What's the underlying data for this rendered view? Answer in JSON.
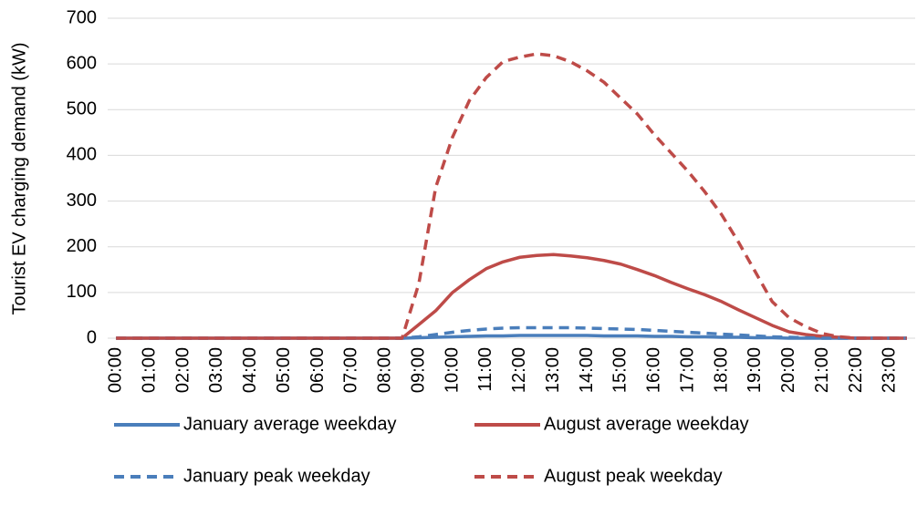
{
  "chart_data": {
    "type": "line",
    "ylabel": "Tourist EV charging demand (kW)",
    "categories": [
      "00:00",
      null,
      "01:00",
      null,
      "02:00",
      null,
      "03:00",
      null,
      "04:00",
      null,
      "05:00",
      null,
      "06:00",
      null,
      "07:00",
      null,
      "08:00",
      null,
      "09:00",
      null,
      "10:00",
      null,
      "11:00",
      null,
      "12:00",
      null,
      "13:00",
      null,
      "14:00",
      null,
      "15:00",
      null,
      "16:00",
      null,
      "17:00",
      null,
      "18:00",
      null,
      "19:00",
      null,
      "20:00",
      null,
      "21:00",
      null,
      "22:00",
      null,
      "23:00",
      null
    ],
    "series": [
      {
        "name": "January average weekday",
        "color": "#4a7ebb",
        "linestyle": "solid",
        "values": [
          0,
          0,
          0,
          0,
          0,
          0,
          0,
          0,
          0,
          0,
          0,
          0,
          0,
          0,
          0,
          0,
          0,
          0,
          1,
          2,
          3,
          4,
          5,
          5,
          6,
          6,
          6,
          6,
          6,
          5,
          5,
          5,
          4,
          4,
          3,
          3,
          2,
          2,
          1,
          1,
          0,
          0,
          0,
          0,
          0,
          0,
          0,
          0
        ]
      },
      {
        "name": "August average weekday",
        "color": "#be4b48",
        "linestyle": "solid",
        "values": [
          0,
          0,
          0,
          0,
          0,
          0,
          0,
          0,
          0,
          0,
          0,
          0,
          0,
          0,
          0,
          0,
          0,
          0,
          30,
          60,
          100,
          128,
          152,
          167,
          177,
          181,
          183,
          180,
          176,
          170,
          162,
          150,
          137,
          122,
          108,
          95,
          80,
          62,
          45,
          28,
          14,
          8,
          4,
          2,
          0,
          0,
          0,
          0
        ]
      },
      {
        "name": "January peak weekday",
        "color": "#4a7ebb",
        "linestyle": "dashed",
        "values": [
          0,
          0,
          0,
          0,
          0,
          0,
          0,
          0,
          0,
          0,
          0,
          0,
          0,
          0,
          0,
          0,
          0,
          0,
          3,
          8,
          13,
          17,
          20,
          22,
          23,
          23,
          23,
          23,
          22,
          21,
          20,
          19,
          17,
          15,
          13,
          11,
          9,
          7,
          5,
          3,
          2,
          1,
          0,
          0,
          0,
          0,
          0,
          0
        ]
      },
      {
        "name": "August peak weekday",
        "color": "#be4b48",
        "linestyle": "dashed",
        "values": [
          0,
          0,
          0,
          0,
          0,
          0,
          0,
          0,
          0,
          0,
          0,
          0,
          0,
          0,
          0,
          0,
          0,
          0,
          120,
          330,
          440,
          520,
          570,
          605,
          615,
          622,
          618,
          605,
          585,
          560,
          525,
          490,
          445,
          405,
          365,
          320,
          270,
          210,
          145,
          80,
          45,
          25,
          10,
          3,
          0,
          0,
          0,
          0
        ]
      }
    ],
    "ylim": [
      0,
      700
    ],
    "yticks": [
      0,
      100,
      200,
      300,
      400,
      500,
      600,
      700
    ],
    "grid": true
  }
}
